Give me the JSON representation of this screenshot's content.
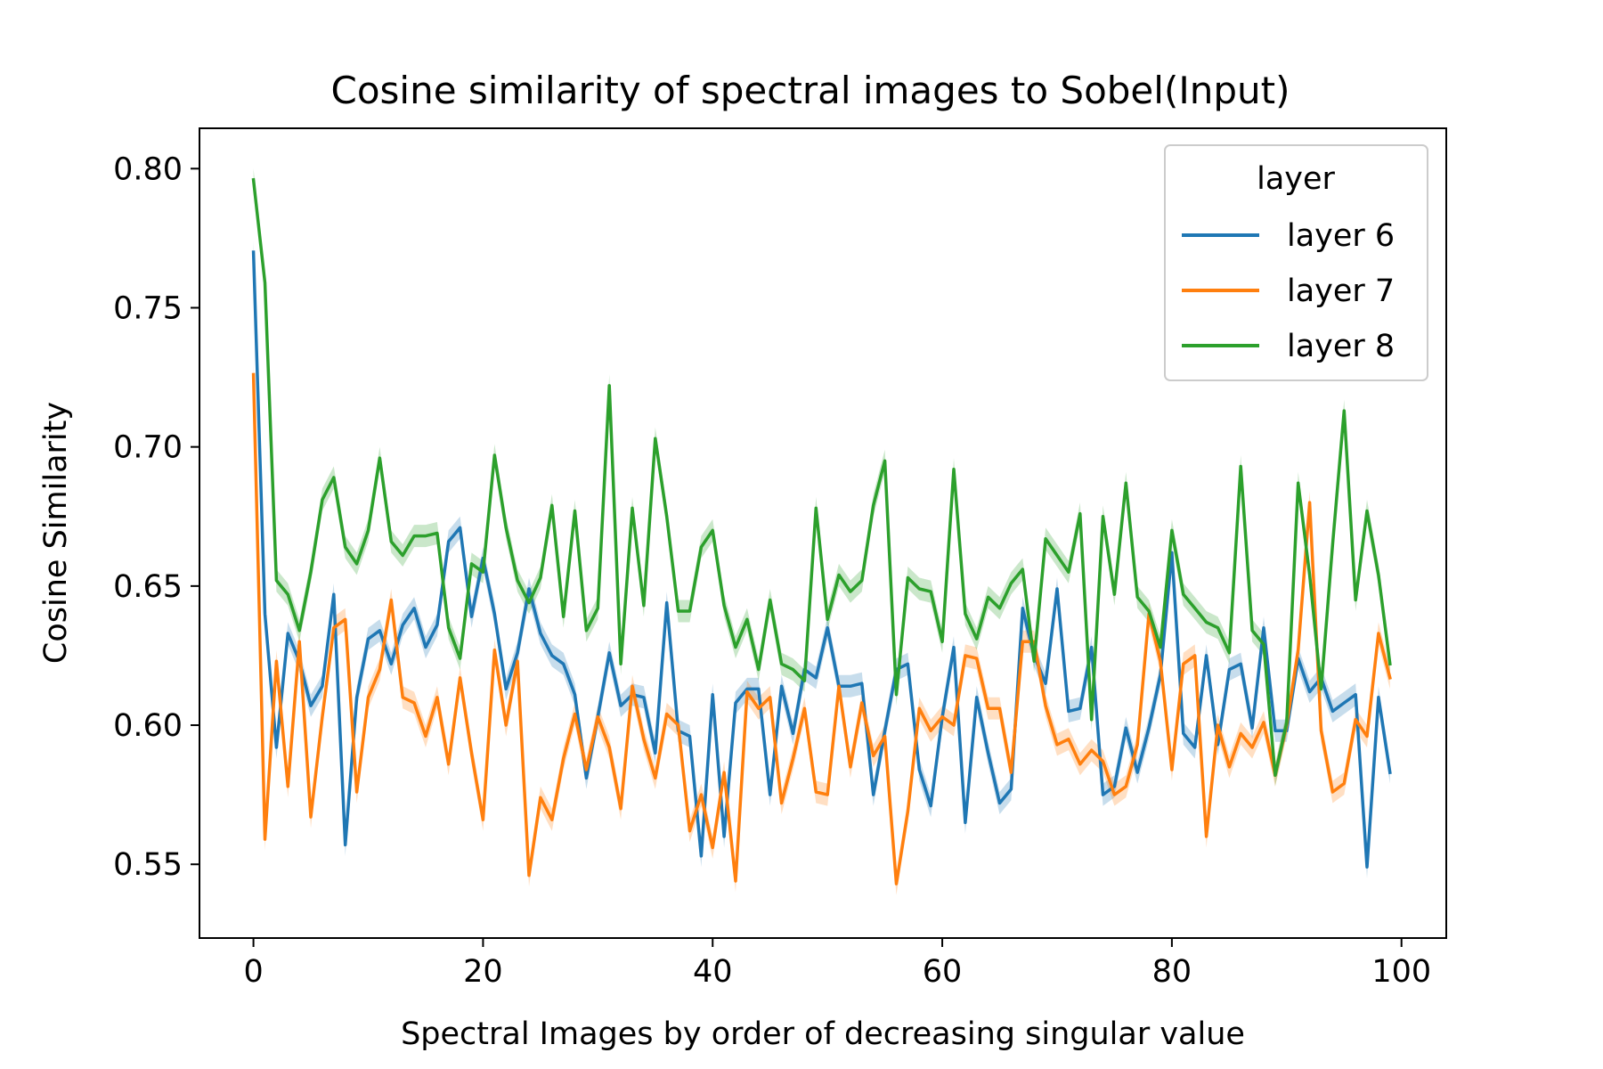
{
  "chart_data": {
    "type": "line",
    "title": "Cosine similarity of spectral images to Sobel(Input)",
    "xlabel": "Spectral Images by order of decreasing singular value",
    "ylabel": "Cosine Similarity",
    "xlim": [
      -4.7,
      103.9
    ],
    "ylim": [
      0.5235,
      0.8145
    ],
    "xticks": [
      0,
      20,
      40,
      60,
      80,
      100
    ],
    "xtick_labels": [
      "0",
      "20",
      "40",
      "60",
      "80",
      "100"
    ],
    "yticks": [
      0.55,
      0.6,
      0.65,
      0.7,
      0.75,
      0.8
    ],
    "ytick_labels": [
      "0.55",
      "0.60",
      "0.65",
      "0.70",
      "0.75",
      "0.80"
    ],
    "grid": false,
    "legend": {
      "title": "layer",
      "position": "top-right"
    },
    "band_halfwidth": 0.004,
    "x": [
      0,
      1,
      2,
      3,
      4,
      5,
      6,
      7,
      8,
      9,
      10,
      11,
      12,
      13,
      14,
      15,
      16,
      17,
      18,
      19,
      20,
      21,
      22,
      23,
      24,
      25,
      26,
      27,
      28,
      29,
      30,
      31,
      32,
      33,
      34,
      35,
      36,
      37,
      38,
      39,
      40,
      41,
      42,
      43,
      44,
      45,
      46,
      47,
      48,
      49,
      50,
      51,
      52,
      53,
      54,
      55,
      56,
      57,
      58,
      59,
      60,
      61,
      62,
      63,
      64,
      65,
      66,
      67,
      68,
      69,
      70,
      71,
      72,
      73,
      74,
      75,
      76,
      77,
      78,
      79,
      80,
      81,
      82,
      83,
      84,
      85,
      86,
      87,
      88,
      89,
      90,
      91,
      92,
      93,
      94,
      95,
      96,
      97,
      98,
      99
    ],
    "series": [
      {
        "name": "layer 6",
        "color": "#1f77b4",
        "values": [
          0.77,
          0.64,
          0.592,
          0.633,
          0.623,
          0.607,
          0.614,
          0.647,
          0.557,
          0.61,
          0.631,
          0.634,
          0.622,
          0.636,
          0.642,
          0.628,
          0.636,
          0.666,
          0.671,
          0.639,
          0.66,
          0.64,
          0.613,
          0.626,
          0.649,
          0.633,
          0.625,
          0.622,
          0.611,
          0.581,
          0.603,
          0.626,
          0.607,
          0.611,
          0.61,
          0.59,
          0.644,
          0.598,
          0.596,
          0.553,
          0.611,
          0.56,
          0.608,
          0.613,
          0.613,
          0.575,
          0.614,
          0.597,
          0.62,
          0.617,
          0.635,
          0.614,
          0.614,
          0.615,
          0.575,
          0.598,
          0.62,
          0.622,
          0.584,
          0.571,
          0.603,
          0.628,
          0.565,
          0.61,
          0.59,
          0.572,
          0.577,
          0.642,
          0.625,
          0.615,
          0.649,
          0.605,
          0.606,
          0.628,
          0.575,
          0.578,
          0.599,
          0.583,
          0.599,
          0.618,
          0.662,
          0.597,
          0.592,
          0.625,
          0.593,
          0.62,
          0.622,
          0.599,
          0.635,
          0.598,
          0.598,
          0.624,
          0.612,
          0.617,
          0.605,
          0.608,
          0.611,
          0.549,
          0.61,
          0.583
        ]
      },
      {
        "name": "layer 7",
        "color": "#ff7f0e",
        "values": [
          0.726,
          0.559,
          0.623,
          0.578,
          0.63,
          0.567,
          0.603,
          0.635,
          0.638,
          0.576,
          0.61,
          0.62,
          0.645,
          0.61,
          0.608,
          0.596,
          0.61,
          0.586,
          0.617,
          0.59,
          0.566,
          0.627,
          0.6,
          0.623,
          0.546,
          0.574,
          0.566,
          0.588,
          0.604,
          0.584,
          0.603,
          0.592,
          0.57,
          0.614,
          0.595,
          0.581,
          0.604,
          0.6,
          0.562,
          0.575,
          0.556,
          0.583,
          0.544,
          0.612,
          0.606,
          0.61,
          0.572,
          0.588,
          0.606,
          0.576,
          0.575,
          0.614,
          0.585,
          0.608,
          0.589,
          0.596,
          0.543,
          0.569,
          0.606,
          0.598,
          0.603,
          0.6,
          0.625,
          0.624,
          0.606,
          0.606,
          0.583,
          0.63,
          0.63,
          0.607,
          0.593,
          0.595,
          0.586,
          0.591,
          0.587,
          0.575,
          0.578,
          0.593,
          0.64,
          0.623,
          0.584,
          0.622,
          0.625,
          0.56,
          0.6,
          0.585,
          0.597,
          0.592,
          0.601,
          0.582,
          0.6,
          0.627,
          0.68,
          0.598,
          0.576,
          0.579,
          0.602,
          0.596,
          0.633,
          0.617
        ]
      },
      {
        "name": "layer 8",
        "color": "#2ca02c",
        "values": [
          0.796,
          0.759,
          0.652,
          0.647,
          0.634,
          0.655,
          0.681,
          0.689,
          0.664,
          0.658,
          0.67,
          0.696,
          0.666,
          0.661,
          0.668,
          0.668,
          0.669,
          0.635,
          0.624,
          0.658,
          0.655,
          0.697,
          0.671,
          0.652,
          0.644,
          0.653,
          0.679,
          0.639,
          0.677,
          0.634,
          0.642,
          0.722,
          0.622,
          0.678,
          0.643,
          0.703,
          0.675,
          0.641,
          0.641,
          0.664,
          0.67,
          0.643,
          0.628,
          0.638,
          0.62,
          0.645,
          0.622,
          0.62,
          0.616,
          0.678,
          0.638,
          0.654,
          0.648,
          0.652,
          0.679,
          0.695,
          0.611,
          0.653,
          0.649,
          0.648,
          0.63,
          0.692,
          0.64,
          0.631,
          0.646,
          0.642,
          0.651,
          0.656,
          0.623,
          0.667,
          0.661,
          0.655,
          0.676,
          0.602,
          0.675,
          0.647,
          0.687,
          0.646,
          0.641,
          0.628,
          0.67,
          0.647,
          0.642,
          0.637,
          0.635,
          0.626,
          0.693,
          0.634,
          0.629,
          0.582,
          0.601,
          0.687,
          0.654,
          0.613,
          0.665,
          0.713,
          0.645,
          0.677,
          0.654,
          0.622
        ]
      }
    ]
  }
}
